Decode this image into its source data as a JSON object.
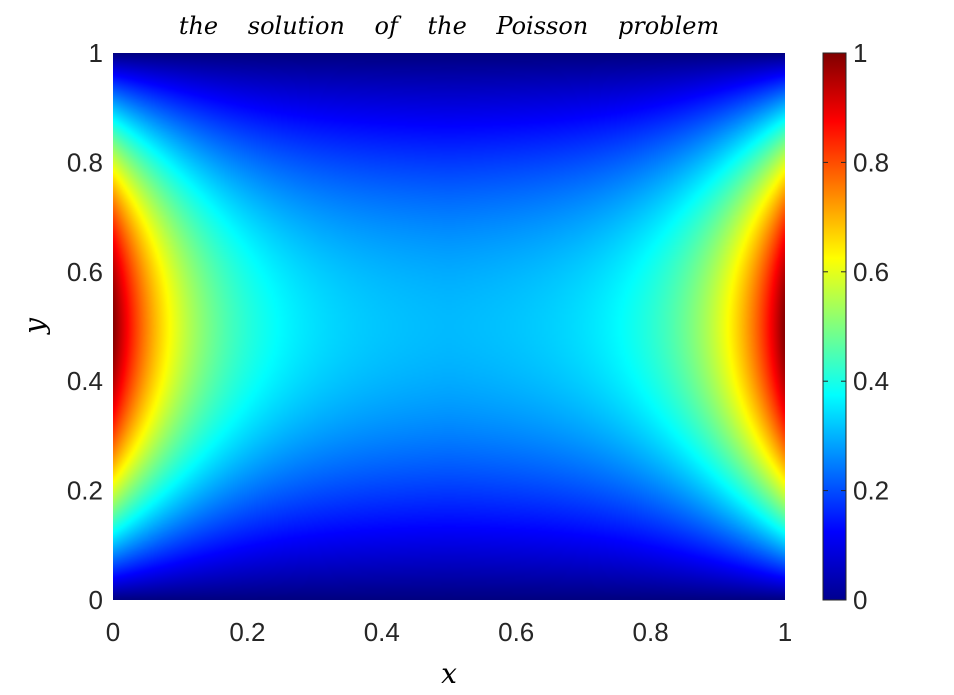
{
  "chart_data": {
    "type": "heatmap",
    "title": "the solution of the Poisson problem",
    "xlabel": "x",
    "ylabel": "y",
    "xlim": [
      0,
      1
    ],
    "ylim": [
      0,
      1
    ],
    "xticks": [
      "0",
      "0.2",
      "0.4",
      "0.6",
      "0.8",
      "1"
    ],
    "yticks": [
      "0",
      "0.2",
      "0.4",
      "0.6",
      "0.8",
      "1"
    ],
    "colorbar": {
      "colormap": "jet",
      "limits": [
        0,
        1
      ],
      "ticks": [
        "0",
        "0.2",
        "0.4",
        "0.6",
        "0.8",
        "1"
      ]
    },
    "field_samples": {
      "x": [
        0,
        0.1,
        0.2,
        0.3,
        0.4,
        0.5,
        0.6,
        0.7,
        0.8,
        0.9,
        1
      ],
      "y": [
        0,
        0.1,
        0.2,
        0.3,
        0.4,
        0.5,
        0.6,
        0.7,
        0.8,
        0.9,
        1
      ],
      "z_at_y_0_5": [
        1.0,
        0.63,
        0.42,
        0.34,
        0.31,
        0.3,
        0.31,
        0.34,
        0.42,
        0.63,
        1.0
      ],
      "z_at_x_0": [
        0,
        0.31,
        0.59,
        0.81,
        0.95,
        1.0,
        0.95,
        0.81,
        0.59,
        0.31,
        0
      ]
    },
    "grid": false
  }
}
